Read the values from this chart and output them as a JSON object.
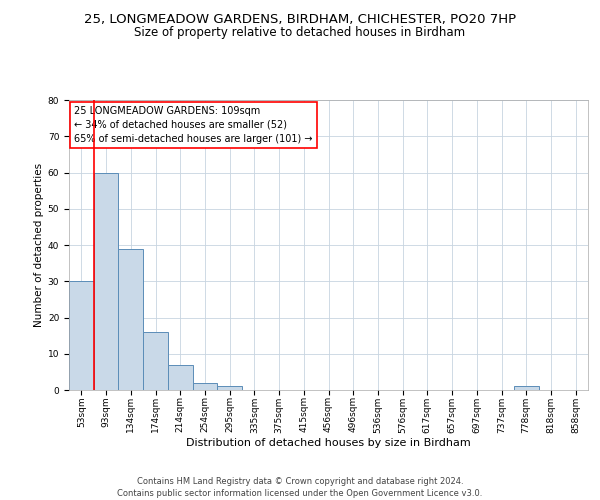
{
  "title_line1": "25, LONGMEADOW GARDENS, BIRDHAM, CHICHESTER, PO20 7HP",
  "title_line2": "Size of property relative to detached houses in Birdham",
  "xlabel": "Distribution of detached houses by size in Birdham",
  "ylabel": "Number of detached properties",
  "footer_line1": "Contains HM Land Registry data © Crown copyright and database right 2024.",
  "footer_line2": "Contains public sector information licensed under the Open Government Licence v3.0.",
  "annotation_line1": "25 LONGMEADOW GARDENS: 109sqm",
  "annotation_line2": "← 34% of detached houses are smaller (52)",
  "annotation_line3": "65% of semi-detached houses are larger (101) →",
  "bar_color": "#c9d9e8",
  "bar_edge_color": "#5b8db8",
  "categories": [
    "53sqm",
    "93sqm",
    "134sqm",
    "174sqm",
    "214sqm",
    "254sqm",
    "295sqm",
    "335sqm",
    "375sqm",
    "415sqm",
    "456sqm",
    "496sqm",
    "536sqm",
    "576sqm",
    "617sqm",
    "657sqm",
    "697sqm",
    "737sqm",
    "778sqm",
    "818sqm",
    "858sqm"
  ],
  "values": [
    30,
    60,
    39,
    16,
    7,
    2,
    1,
    0,
    0,
    0,
    0,
    0,
    0,
    0,
    0,
    0,
    0,
    0,
    1,
    0,
    0
  ],
  "ylim": [
    0,
    80
  ],
  "yticks": [
    0,
    10,
    20,
    30,
    40,
    50,
    60,
    70,
    80
  ],
  "background_color": "#ffffff",
  "grid_color": "#c8d4e0",
  "title1_fontsize": 9.5,
  "title2_fontsize": 8.5,
  "xlabel_fontsize": 8,
  "ylabel_fontsize": 7.5,
  "tick_fontsize": 6.5,
  "annotation_fontsize": 7,
  "footer_fontsize": 6
}
